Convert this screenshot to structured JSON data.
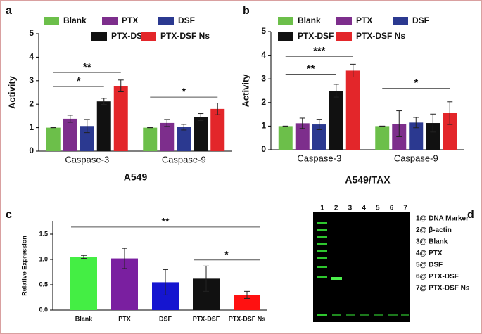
{
  "panel_labels": [
    "a",
    "b",
    "c",
    "d"
  ],
  "chart_data": [
    {
      "type": "bar",
      "xlabel": "A549",
      "ylabel": "Activity",
      "categories": [
        "Caspase-3",
        "Caspase-9"
      ],
      "series": [
        {
          "name": "Blank",
          "color": "#6cbf4a",
          "values": [
            1,
            1
          ],
          "errors": [
            0,
            0
          ]
        },
        {
          "name": "PTX",
          "color": "#7d2e8c",
          "values": [
            1.38,
            1.2
          ],
          "errors": [
            0.15,
            0.15
          ]
        },
        {
          "name": "DSF",
          "color": "#2b3990",
          "values": [
            1.07,
            1.02
          ],
          "errors": [
            0.28,
            0.12
          ]
        },
        {
          "name": "PTX-DSF",
          "color": "#111111",
          "values": [
            2.12,
            1.45
          ],
          "errors": [
            0.13,
            0.15
          ]
        },
        {
          "name": "PTX-DSF Ns",
          "color": "#e3262a",
          "values": [
            2.78,
            1.8
          ],
          "errors": [
            0.25,
            0.25
          ]
        }
      ],
      "ylim": [
        0,
        5
      ],
      "yticks": [
        0,
        1,
        2,
        3,
        4,
        5
      ],
      "annotations": [
        "*",
        "**",
        "*"
      ]
    },
    {
      "type": "bar",
      "xlabel": "A549/TAX",
      "ylabel": "Activity",
      "categories": [
        "Caspase-3",
        "Caspase-9"
      ],
      "series": [
        {
          "name": "Blank",
          "color": "#6cbf4a",
          "values": [
            1,
            1
          ],
          "errors": [
            0,
            0
          ]
        },
        {
          "name": "PTX",
          "color": "#7d2e8c",
          "values": [
            1.12,
            1.1
          ],
          "errors": [
            0.22,
            0.55
          ]
        },
        {
          "name": "DSF",
          "color": "#2b3990",
          "values": [
            1.07,
            1.15
          ],
          "errors": [
            0.22,
            0.22
          ]
        },
        {
          "name": "PTX-DSF",
          "color": "#111111",
          "values": [
            2.5,
            1.13
          ],
          "errors": [
            0.27,
            0.38
          ]
        },
        {
          "name": "PTX-DSF Ns",
          "color": "#e3262a",
          "values": [
            3.35,
            1.55
          ],
          "errors": [
            0.27,
            0.48
          ]
        }
      ],
      "ylim": [
        0,
        5
      ],
      "yticks": [
        0,
        1,
        2,
        3,
        4,
        5
      ],
      "annotations": [
        "**",
        "***",
        "*"
      ]
    },
    {
      "type": "bar",
      "ylabel": "Relative Expression",
      "categories": [
        "Blank",
        "PTX",
        "DSF",
        "PTX-DSF",
        "PTX-DSF Ns"
      ],
      "values": [
        1.05,
        1.02,
        0.55,
        0.62,
        0.3
      ],
      "errors": [
        0.03,
        0.2,
        0.25,
        0.25,
        0.07
      ],
      "colors": [
        "#44ee44",
        "#7a1fa0",
        "#1515d0",
        "#111111",
        "#ff1111"
      ],
      "ylim": [
        0,
        1.75
      ],
      "yticks": [
        {
          "value": 0,
          "label": "0.0"
        },
        0.5,
        {
          "value": 1,
          "label": "1.0"
        },
        1.5
      ],
      "annotations": [
        "**",
        "*"
      ]
    }
  ],
  "gel": {
    "lanes": [
      "1",
      "2",
      "3",
      "4",
      "5",
      "6",
      "7"
    ],
    "legend": [
      "1@ DNA Marker",
      "2@ β-actin",
      "3@ Blank",
      "4@ PTX",
      "5@ DSF",
      "6@ PTX-DSF",
      "7@ PTX-DSF Ns"
    ]
  }
}
